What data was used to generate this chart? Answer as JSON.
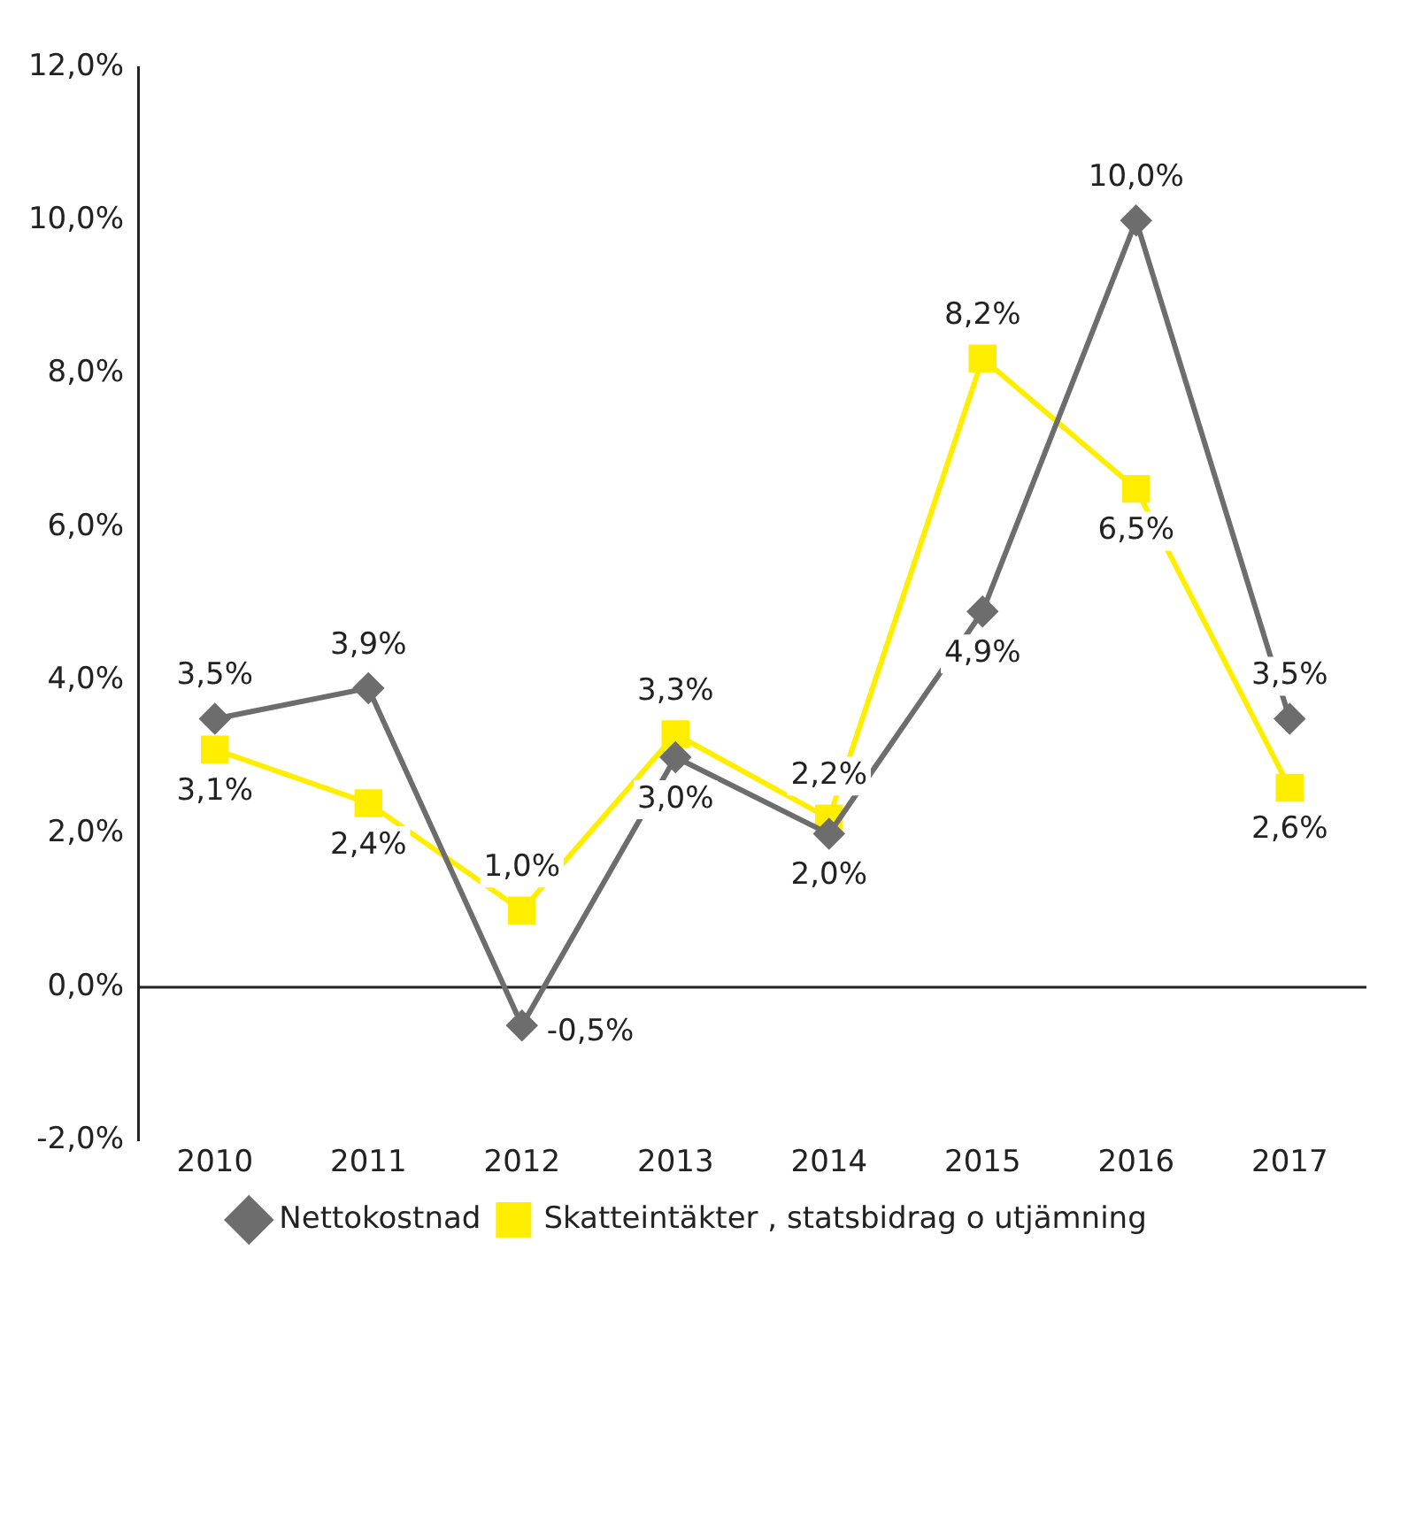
{
  "chart_data": {
    "type": "line",
    "categories": [
      "2010",
      "2011",
      "2012",
      "2013",
      "2014",
      "2015",
      "2016",
      "2017"
    ],
    "series": [
      {
        "name": "Nettokostnad",
        "color": "#6d6d6d",
        "marker": "diamond",
        "values": [
          3.5,
          3.9,
          -0.5,
          3.0,
          2.0,
          4.9,
          10.0,
          3.5
        ],
        "value_labels": [
          "3,5%",
          "3,9%",
          "-0,5%",
          "3,0%",
          "2,0%",
          "4,9%",
          "10,0%",
          "3,5%"
        ]
      },
      {
        "name": "Skatteintäkter , statsbidrag o utjämning",
        "color": "#ffee00",
        "marker": "square",
        "values": [
          3.1,
          2.4,
          1.0,
          3.3,
          2.2,
          8.2,
          6.5,
          2.6
        ],
        "value_labels": [
          "3,1%",
          "2,4%",
          "1,0%",
          "3,3%",
          "2,2%",
          "8,2%",
          "6,5%",
          "2,6%"
        ]
      }
    ],
    "ylim": [
      -2,
      12
    ],
    "yticks": [
      {
        "value": -2,
        "label": "-2,0%"
      },
      {
        "value": 0,
        "label": "0,0%"
      },
      {
        "value": 2,
        "label": "2,0%"
      },
      {
        "value": 4,
        "label": "4,0%"
      },
      {
        "value": 6,
        "label": "6,0%"
      },
      {
        "value": 8,
        "label": "8,0%"
      },
      {
        "value": 10,
        "label": "10,0%"
      },
      {
        "value": 12,
        "label": "12,0%"
      }
    ],
    "ref_lines": [
      {
        "axis": "y",
        "value": 0,
        "color": "#222222"
      }
    ],
    "grid": false,
    "legend": "bottom"
  }
}
